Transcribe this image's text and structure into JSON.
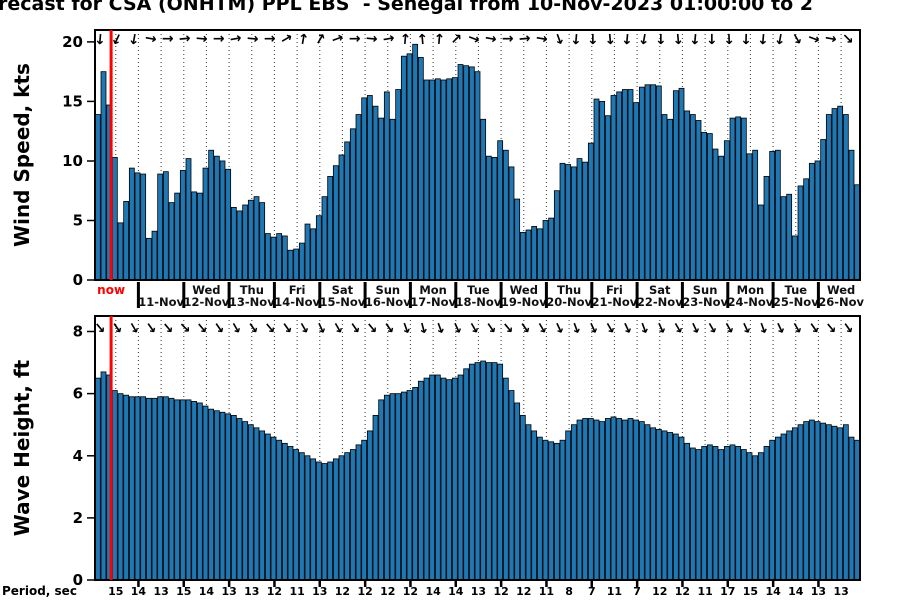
{
  "title": "recast for CSA (ONHTM) PPL EBS  - Senegal from 10-Nov-2023 01:00:00 to 2",
  "now": {
    "label": "now",
    "t_hours": 8.5
  },
  "colors": {
    "bar_fill": "#1f77b4",
    "bar_edge": "#000000",
    "now_line": "#ff0000",
    "text": "#000000"
  },
  "x_axis": {
    "start": "10-Nov-2023 01:00:00",
    "bar_interval_hours": 3,
    "day_labels": [
      {
        "dow": "",
        "date": "11-Nov"
      },
      {
        "dow": "Wed",
        "date": "12-Nov"
      },
      {
        "dow": "Thu",
        "date": "13-Nov"
      },
      {
        "dow": "Fri",
        "date": "14-Nov"
      },
      {
        "dow": "Sat",
        "date": "15-Nov"
      },
      {
        "dow": "Sun",
        "date": "16-Nov"
      },
      {
        "dow": "Mon",
        "date": "17-Nov"
      },
      {
        "dow": "Tue",
        "date": "18-Nov"
      },
      {
        "dow": "Wed",
        "date": "19-Nov"
      },
      {
        "dow": "Thu",
        "date": "20-Nov"
      },
      {
        "dow": "Fri",
        "date": "21-Nov"
      },
      {
        "dow": "Sat",
        "date": "22-Nov"
      },
      {
        "dow": "Sun",
        "date": "23-Nov"
      },
      {
        "dow": "Mon",
        "date": "24-Nov"
      },
      {
        "dow": "Tue",
        "date": "25-Nov"
      },
      {
        "dow": "Wed",
        "date": "26-Nov"
      }
    ]
  },
  "chart_data": [
    {
      "id": "wind",
      "type": "bar",
      "ylabel": "Wind Speed, kts",
      "unit": "kts",
      "yticks": [
        0,
        5,
        10,
        15,
        20
      ],
      "ylim": [
        0,
        21
      ],
      "values": [
        13.9,
        17.5,
        14.7,
        10.3,
        4.8,
        6.6,
        9.4,
        9.0,
        8.9,
        3.5,
        4.1,
        8.9,
        9.1,
        6.5,
        7.3,
        9.2,
        10.2,
        7.4,
        7.3,
        9.4,
        10.9,
        10.4,
        10.0,
        9.3,
        6.1,
        5.8,
        6.3,
        6.7,
        7.0,
        6.5,
        3.9,
        3.6,
        3.9,
        3.7,
        2.5,
        2.6,
        3.1,
        4.7,
        4.3,
        5.4,
        7.0,
        8.7,
        9.6,
        10.5,
        11.6,
        12.7,
        13.9,
        15.3,
        15.5,
        14.6,
        13.6,
        15.8,
        13.5,
        16.0,
        18.8,
        19.0,
        19.8,
        18.7,
        16.8,
        16.8,
        16.9,
        16.8,
        16.9,
        17.0,
        18.1,
        18.0,
        17.9,
        17.5,
        13.5,
        10.4,
        10.3,
        11.7,
        10.9,
        9.5,
        6.8,
        4.0,
        4.2,
        4.5,
        4.3,
        5.0,
        5.2,
        7.5,
        9.8,
        9.7,
        9.5,
        10.2,
        9.9,
        11.5,
        15.2,
        15.0,
        13.8,
        15.5,
        15.8,
        16.0,
        16.0,
        14.9,
        16.2,
        16.4,
        16.4,
        16.3,
        13.9,
        13.5,
        15.9,
        16.1,
        14.2,
        13.9,
        13.4,
        12.4,
        12.3,
        11.0,
        10.4,
        11.7,
        13.6,
        13.7,
        13.6,
        10.6,
        10.9,
        6.3,
        8.7,
        10.8,
        10.9,
        7.0,
        7.2,
        3.7,
        7.9,
        8.5,
        9.8,
        10.0,
        11.8,
        13.9,
        14.4,
        14.6,
        13.9,
        10.9,
        8.0
      ],
      "arrows_deg": [
        95,
        115,
        100,
        10,
        0,
        -5,
        5,
        0,
        -10,
        5,
        0,
        -30,
        -80,
        -60,
        -20,
        0,
        5,
        -10,
        -85,
        -95,
        -85,
        -45,
        20,
        10,
        0,
        -5,
        10,
        70,
        95,
        90,
        85,
        95,
        100,
        90,
        85,
        95,
        90,
        88,
        92,
        95,
        100,
        60,
        20,
        10,
        45
      ]
    },
    {
      "id": "wave",
      "type": "bar",
      "ylabel": "Wave Height, ft",
      "unit": "ft",
      "yticks": [
        0,
        2,
        4,
        6,
        8
      ],
      "ylim": [
        0,
        8.5
      ],
      "values": [
        6.5,
        6.7,
        6.6,
        6.1,
        6.0,
        5.95,
        5.9,
        5.9,
        5.9,
        5.85,
        5.85,
        5.9,
        5.9,
        5.85,
        5.8,
        5.8,
        5.8,
        5.75,
        5.7,
        5.6,
        5.5,
        5.45,
        5.4,
        5.35,
        5.3,
        5.2,
        5.1,
        5.0,
        4.9,
        4.8,
        4.7,
        4.6,
        4.5,
        4.4,
        4.3,
        4.2,
        4.1,
        4.0,
        3.9,
        3.8,
        3.75,
        3.8,
        3.9,
        4.0,
        4.1,
        4.2,
        4.35,
        4.5,
        4.8,
        5.3,
        5.8,
        5.95,
        6.0,
        6.0,
        6.05,
        6.1,
        6.2,
        6.4,
        6.5,
        6.6,
        6.6,
        6.5,
        6.45,
        6.5,
        6.6,
        6.8,
        6.95,
        7.0,
        7.05,
        7.0,
        7.0,
        6.95,
        6.5,
        6.1,
        5.7,
        5.3,
        5.0,
        4.8,
        4.6,
        4.5,
        4.45,
        4.4,
        4.5,
        4.8,
        5.0,
        5.15,
        5.2,
        5.2,
        5.15,
        5.1,
        5.2,
        5.25,
        5.2,
        5.15,
        5.2,
        5.15,
        5.1,
        5.0,
        4.9,
        4.85,
        4.8,
        4.75,
        4.7,
        4.6,
        4.4,
        4.25,
        4.2,
        4.3,
        4.35,
        4.3,
        4.2,
        4.3,
        4.35,
        4.3,
        4.2,
        4.1,
        4.0,
        4.1,
        4.3,
        4.5,
        4.6,
        4.7,
        4.8,
        4.9,
        5.0,
        5.1,
        5.15,
        5.1,
        5.05,
        5.0,
        4.95,
        4.9,
        5.0,
        4.6,
        4.5
      ],
      "arrows_deg": [
        50,
        55,
        60,
        55,
        50,
        45,
        50,
        55,
        60,
        55,
        50,
        55,
        60,
        65,
        60,
        55,
        50,
        55,
        70,
        75,
        70,
        65,
        60,
        55,
        50,
        55,
        60,
        65,
        70,
        65,
        60,
        65,
        70,
        65,
        60,
        65,
        60,
        60,
        65,
        70,
        65,
        60,
        55,
        50,
        55
      ]
    }
  ],
  "period": {
    "label": "Period, sec",
    "values": [
      15,
      14,
      13,
      15,
      14,
      13,
      13,
      12,
      11,
      13,
      12,
      12,
      12,
      12,
      14,
      14,
      13,
      12,
      12,
      11,
      8,
      7,
      11,
      7,
      12,
      12,
      11,
      17,
      15,
      14,
      14,
      13,
      13
    ]
  }
}
